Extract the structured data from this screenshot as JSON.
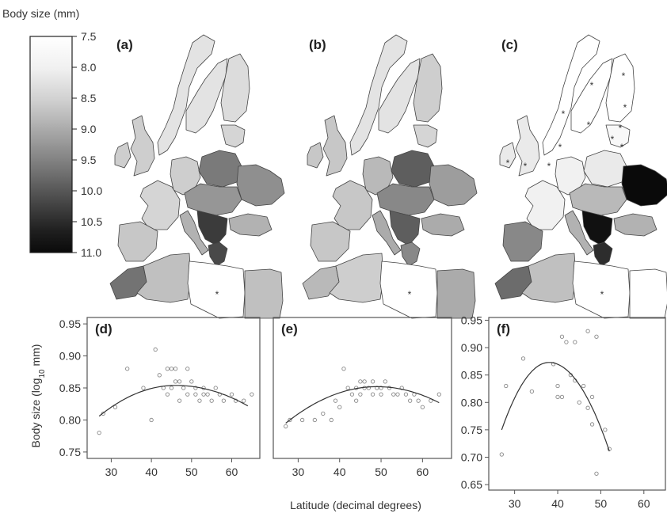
{
  "legend": {
    "title": "Body size (mm)",
    "ticks": [
      "7.5",
      "8.0",
      "8.5",
      "9.0",
      "9.5",
      "10.0",
      "10.5",
      "11.0"
    ],
    "min": 7.5,
    "max": 11.0,
    "low_color": "#ffffff",
    "high_color": "#0a0a0a"
  },
  "maps": [
    {
      "label": "(a)",
      "key": "a"
    },
    {
      "label": "(b)",
      "key": "b"
    },
    {
      "label": "(c)",
      "key": "c"
    }
  ],
  "map_region_values": {
    "a": {
      "scandinavia": 7.9,
      "finland": 8.0,
      "baltics": 8.1,
      "uk": 8.2,
      "ireland": 8.2,
      "iberia": 8.3,
      "france": 8.1,
      "germany": 8.2,
      "poland": 9.4,
      "central": 9.0,
      "ukraine": 9.1,
      "italy": 8.6,
      "balkans": 10.3,
      "greece": 10.1,
      "turkey": 8.6,
      "morocco": 9.5,
      "algeria": 8.4,
      "libya": 7.5,
      "egypt": 8.4
    },
    "b": {
      "scandinavia": 7.9,
      "finland": 8.2,
      "baltics": 8.1,
      "uk": 8.3,
      "ireland": 8.3,
      "iberia": 8.3,
      "france": 8.3,
      "germany": 8.5,
      "poland": 9.8,
      "central": 9.2,
      "ukraine": 8.9,
      "italy": 8.7,
      "balkans": 9.8,
      "greece": 9.2,
      "turkey": 8.7,
      "morocco": 8.5,
      "algeria": 8.2,
      "libya": 7.5,
      "egypt": 8.7
    },
    "c": {
      "scandinavia": 7.5,
      "finland": 7.5,
      "baltics": 7.6,
      "uk": 7.8,
      "ireland": 7.8,
      "iberia": 9.2,
      "france": 7.7,
      "germany": 7.7,
      "poland": 7.8,
      "central": 8.5,
      "ukraine": 11.0,
      "italy": 8.6,
      "balkans": 10.9,
      "greece": 10.5,
      "turkey": 8.6,
      "morocco": 9.6,
      "algeria": 8.4,
      "libya": 7.5,
      "egypt": 7.5
    }
  },
  "chart_data": [
    {
      "type": "scatter",
      "panel": "(d)",
      "xlabel": "Latitude (decimal degrees)",
      "ylabel": "Body size (log10 mm)",
      "xlim": [
        24,
        67
      ],
      "ylim": [
        0.74,
        0.96
      ],
      "xticks": [
        30,
        40,
        50,
        60
      ],
      "yticks": [
        0.75,
        0.8,
        0.85,
        0.9,
        0.95
      ],
      "ytick_labels": [
        "0.75",
        "0.80",
        "0.85",
        "0.90",
        "0.95"
      ],
      "points": [
        [
          27,
          0.78
        ],
        [
          28,
          0.81
        ],
        [
          31,
          0.82
        ],
        [
          34,
          0.88
        ],
        [
          38,
          0.85
        ],
        [
          40,
          0.8
        ],
        [
          41,
          0.91
        ],
        [
          42,
          0.87
        ],
        [
          43,
          0.85
        ],
        [
          44,
          0.88
        ],
        [
          44,
          0.84
        ],
        [
          45,
          0.88
        ],
        [
          45,
          0.85
        ],
        [
          46,
          0.86
        ],
        [
          46,
          0.88
        ],
        [
          47,
          0.86
        ],
        [
          47,
          0.83
        ],
        [
          48,
          0.85
        ],
        [
          49,
          0.88
        ],
        [
          49,
          0.84
        ],
        [
          50,
          0.86
        ],
        [
          51,
          0.84
        ],
        [
          51,
          0.85
        ],
        [
          52,
          0.83
        ],
        [
          53,
          0.85
        ],
        [
          53,
          0.84
        ],
        [
          54,
          0.84
        ],
        [
          55,
          0.83
        ],
        [
          56,
          0.85
        ],
        [
          57,
          0.84
        ],
        [
          58,
          0.83
        ],
        [
          60,
          0.84
        ],
        [
          61,
          0.83
        ],
        [
          63,
          0.83
        ],
        [
          65,
          0.84
        ]
      ],
      "fit": {
        "type": "quadratic",
        "peak_x": 46,
        "peak_y": 0.854,
        "x_range": [
          27,
          64
        ],
        "y_at_start": 0.806,
        "y_at_end": 0.822
      }
    },
    {
      "type": "scatter",
      "panel": "(e)",
      "xlabel": "Latitude (decimal degrees)",
      "ylabel": "",
      "xlim": [
        24,
        67
      ],
      "ylim": [
        0.74,
        0.96
      ],
      "xticks": [
        30,
        40,
        50,
        60
      ],
      "yticks": [],
      "points": [
        [
          27,
          0.79
        ],
        [
          28,
          0.8
        ],
        [
          31,
          0.8
        ],
        [
          34,
          0.8
        ],
        [
          36,
          0.81
        ],
        [
          38,
          0.8
        ],
        [
          39,
          0.83
        ],
        [
          40,
          0.82
        ],
        [
          41,
          0.88
        ],
        [
          42,
          0.85
        ],
        [
          43,
          0.84
        ],
        [
          44,
          0.85
        ],
        [
          44,
          0.83
        ],
        [
          45,
          0.86
        ],
        [
          45,
          0.84
        ],
        [
          46,
          0.86
        ],
        [
          46,
          0.85
        ],
        [
          47,
          0.85
        ],
        [
          48,
          0.86
        ],
        [
          48,
          0.84
        ],
        [
          49,
          0.85
        ],
        [
          50,
          0.84
        ],
        [
          50,
          0.85
        ],
        [
          51,
          0.86
        ],
        [
          52,
          0.85
        ],
        [
          53,
          0.84
        ],
        [
          54,
          0.84
        ],
        [
          55,
          0.85
        ],
        [
          56,
          0.84
        ],
        [
          57,
          0.83
        ],
        [
          58,
          0.84
        ],
        [
          59,
          0.83
        ],
        [
          60,
          0.82
        ],
        [
          62,
          0.83
        ],
        [
          64,
          0.84
        ]
      ],
      "fit": {
        "type": "quadratic",
        "peak_x": 49,
        "peak_y": 0.852,
        "x_range": [
          27,
          64
        ],
        "y_at_start": 0.795,
        "y_at_end": 0.827
      }
    },
    {
      "type": "scatter",
      "panel": "(f)",
      "xlabel": "Latitude (decimal degrees)",
      "ylabel": "",
      "xlim": [
        24,
        65
      ],
      "ylim": [
        0.64,
        0.955
      ],
      "xticks": [
        30,
        40,
        50,
        60
      ],
      "yticks": [
        0.65,
        0.7,
        0.75,
        0.8,
        0.85,
        0.9,
        0.95
      ],
      "ytick_labels": [
        "0.65",
        "0.70",
        "0.75",
        "0.80",
        "0.85",
        "0.90",
        "0.95"
      ],
      "points": [
        [
          27,
          0.705
        ],
        [
          28,
          0.83
        ],
        [
          32,
          0.88
        ],
        [
          34,
          0.82
        ],
        [
          39,
          0.87
        ],
        [
          40,
          0.81
        ],
        [
          40,
          0.83
        ],
        [
          41,
          0.81
        ],
        [
          41,
          0.92
        ],
        [
          42,
          0.91
        ],
        [
          43,
          0.85
        ],
        [
          44,
          0.84
        ],
        [
          44,
          0.91
        ],
        [
          45,
          0.8
        ],
        [
          46,
          0.83
        ],
        [
          47,
          0.93
        ],
        [
          47,
          0.79
        ],
        [
          48,
          0.76
        ],
        [
          48,
          0.81
        ],
        [
          49,
          0.67
        ],
        [
          49,
          0.92
        ],
        [
          51,
          0.75
        ],
        [
          52,
          0.715
        ]
      ],
      "fit": {
        "type": "quadratic",
        "peak_x": 38,
        "peak_y": 0.873,
        "x_range": [
          27,
          52
        ],
        "y_at_start": 0.75,
        "y_at_end": 0.711
      }
    }
  ]
}
